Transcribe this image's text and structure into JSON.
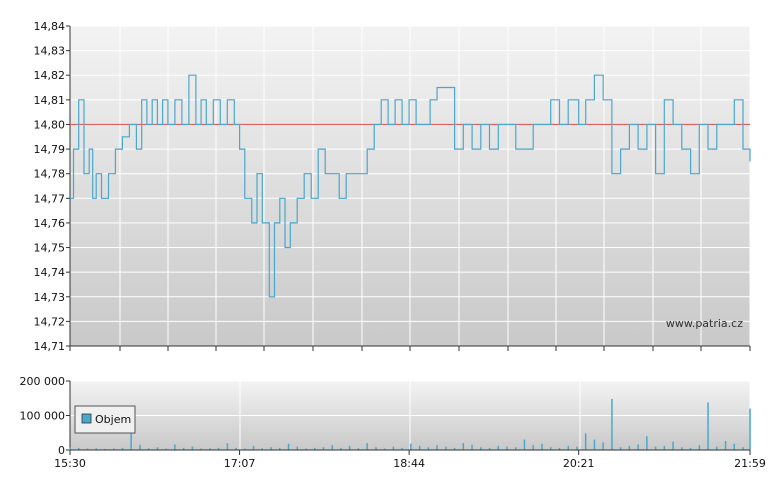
{
  "colors": {
    "price_line": "#4aa8cc",
    "reference_line": "#e06060",
    "volume_bar": "#4aa8cc",
    "grid": "#ffffff",
    "plot_bg_top": "#f3f3f3",
    "plot_bg_bottom": "#c9c9c9",
    "legend_swatch": "#4aa8cc"
  },
  "watermark": "www.patria.cz",
  "chart_data": [
    {
      "type": "line",
      "grid": true,
      "ylim": [
        14.71,
        14.84
      ],
      "y_ticks": [
        "14,84",
        "14,83",
        "14,82",
        "14,81",
        "14,80",
        "14,79",
        "14,78",
        "14,77",
        "14,76",
        "14,75",
        "14,74",
        "14,73",
        "14,72",
        "14,71"
      ],
      "reference_value": 14.8,
      "x_range": [
        "15:30",
        "21:59"
      ],
      "series": [
        {
          "x": [
            "15:30",
            "15:32",
            "15:35",
            "15:38",
            "15:41",
            "15:43",
            "15:45",
            "15:48",
            "15:52",
            "15:56",
            "16:00",
            "16:04",
            "16:08",
            "16:11",
            "16:14",
            "16:17",
            "16:20",
            "16:23",
            "16:26",
            "16:30",
            "16:34",
            "16:38",
            "16:42",
            "16:45",
            "16:48",
            "16:52",
            "16:56",
            "17:00",
            "17:04",
            "17:07",
            "17:10",
            "17:14",
            "17:17",
            "17:20",
            "17:24",
            "17:27",
            "17:30",
            "17:33",
            "17:36",
            "17:40",
            "17:44",
            "17:48",
            "17:52",
            "17:56",
            "18:00",
            "18:04",
            "18:08",
            "18:12",
            "18:16",
            "18:20",
            "18:24",
            "18:28",
            "18:32",
            "18:36",
            "18:40",
            "18:44",
            "18:48",
            "18:52",
            "18:56",
            "19:00",
            "19:05",
            "19:10",
            "19:15",
            "19:20",
            "19:25",
            "19:30",
            "19:35",
            "19:40",
            "19:45",
            "19:50",
            "19:55",
            "20:00",
            "20:05",
            "20:10",
            "20:15",
            "20:21",
            "20:25",
            "20:30",
            "20:35",
            "20:40",
            "20:45",
            "20:50",
            "20:55",
            "21:00",
            "21:05",
            "21:10",
            "21:15",
            "21:20",
            "21:25",
            "21:30",
            "21:35",
            "21:40",
            "21:45",
            "21:50",
            "21:55",
            "21:59"
          ],
          "values": [
            14.77,
            14.79,
            14.81,
            14.78,
            14.79,
            14.77,
            14.78,
            14.77,
            14.78,
            14.79,
            14.795,
            14.8,
            14.79,
            14.81,
            14.8,
            14.81,
            14.8,
            14.81,
            14.8,
            14.81,
            14.8,
            14.82,
            14.8,
            14.81,
            14.8,
            14.81,
            14.8,
            14.81,
            14.8,
            14.79,
            14.77,
            14.76,
            14.78,
            14.76,
            14.73,
            14.76,
            14.77,
            14.75,
            14.76,
            14.77,
            14.78,
            14.77,
            14.79,
            14.78,
            14.78,
            14.77,
            14.78,
            14.78,
            14.78,
            14.79,
            14.8,
            14.81,
            14.8,
            14.81,
            14.8,
            14.81,
            14.8,
            14.8,
            14.81,
            14.815,
            14.815,
            14.79,
            14.8,
            14.79,
            14.8,
            14.79,
            14.8,
            14.8,
            14.79,
            14.79,
            14.8,
            14.8,
            14.81,
            14.8,
            14.81,
            14.8,
            14.81,
            14.82,
            14.81,
            14.78,
            14.79,
            14.8,
            14.79,
            14.8,
            14.78,
            14.81,
            14.8,
            14.79,
            14.78,
            14.8,
            14.79,
            14.8,
            14.8,
            14.81,
            14.79,
            14.785
          ]
        }
      ]
    },
    {
      "type": "bar",
      "grid": true,
      "ylim": [
        0,
        200000
      ],
      "y_ticks": [
        "200 000",
        "100 000",
        "0"
      ],
      "x_ticks": [
        "15:30",
        "17:07",
        "18:44",
        "20:21",
        "21:59"
      ],
      "legend": {
        "label": "Objem",
        "placement": "left"
      },
      "series": [
        {
          "name": "Objem",
          "x": [
            "15:30",
            "15:35",
            "15:40",
            "15:45",
            "15:50",
            "15:55",
            "16:00",
            "16:05",
            "16:10",
            "16:15",
            "16:20",
            "16:25",
            "16:30",
            "16:35",
            "16:40",
            "16:45",
            "16:50",
            "16:55",
            "17:00",
            "17:05",
            "17:10",
            "17:15",
            "17:20",
            "17:25",
            "17:30",
            "17:35",
            "17:40",
            "17:45",
            "17:50",
            "17:55",
            "18:00",
            "18:05",
            "18:10",
            "18:15",
            "18:20",
            "18:25",
            "18:30",
            "18:35",
            "18:40",
            "18:45",
            "18:50",
            "18:55",
            "19:00",
            "19:05",
            "19:10",
            "19:15",
            "19:20",
            "19:25",
            "19:30",
            "19:35",
            "19:40",
            "19:45",
            "19:50",
            "19:55",
            "20:00",
            "20:05",
            "20:10",
            "20:15",
            "20:20",
            "20:25",
            "20:30",
            "20:35",
            "20:40",
            "20:45",
            "20:50",
            "20:55",
            "21:00",
            "21:05",
            "21:10",
            "21:15",
            "21:20",
            "21:25",
            "21:30",
            "21:35",
            "21:40",
            "21:45",
            "21:50",
            "21:55",
            "21:59"
          ],
          "values": [
            8000,
            6000,
            4000,
            5000,
            3000,
            4000,
            6000,
            112000,
            15000,
            5000,
            8000,
            4000,
            16000,
            6000,
            10000,
            4000,
            5000,
            6000,
            20000,
            6000,
            4000,
            12000,
            5000,
            8000,
            6000,
            18000,
            10000,
            4000,
            6000,
            8000,
            14000,
            6000,
            12000,
            5000,
            20000,
            8000,
            4000,
            10000,
            6000,
            18000,
            12000,
            8000,
            14000,
            10000,
            6000,
            20000,
            15000,
            8000,
            6000,
            12000,
            10000,
            8000,
            30000,
            14000,
            18000,
            8000,
            6000,
            12000,
            10000,
            48000,
            30000,
            22000,
            148000,
            8000,
            12000,
            16000,
            40000,
            10000,
            12000,
            24000,
            8000,
            6000,
            14000,
            138000,
            10000,
            26000,
            18000,
            8000,
            120000
          ]
        }
      ]
    }
  ]
}
